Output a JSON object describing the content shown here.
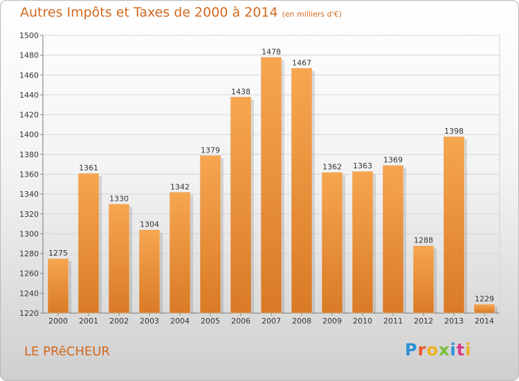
{
  "header": {
    "title": "Autres Impôts et Taxes de 2000 à 2014",
    "unit": "(en milliers d'€)"
  },
  "footer": {
    "place": "LE PRêCHEUR",
    "brand": "Proxiti"
  },
  "colors": {
    "accent": "#d2691e",
    "bar_top": "#f7a650",
    "bar_bottom": "#d97a26"
  },
  "chart_data": {
    "type": "bar",
    "categories": [
      "2000",
      "2001",
      "2002",
      "2003",
      "2004",
      "2005",
      "2006",
      "2007",
      "2008",
      "2009",
      "2010",
      "2011",
      "2012",
      "2013",
      "2014"
    ],
    "values": [
      1275,
      1361,
      1330,
      1304,
      1342,
      1379,
      1438,
      1478,
      1467,
      1362,
      1363,
      1369,
      1288,
      1398,
      1229
    ],
    "ylim": [
      1220,
      1500
    ],
    "yticks": [
      1220,
      1240,
      1260,
      1280,
      1300,
      1320,
      1340,
      1360,
      1380,
      1400,
      1420,
      1440,
      1460,
      1480,
      1500
    ],
    "grid": true,
    "data_labels": true
  }
}
